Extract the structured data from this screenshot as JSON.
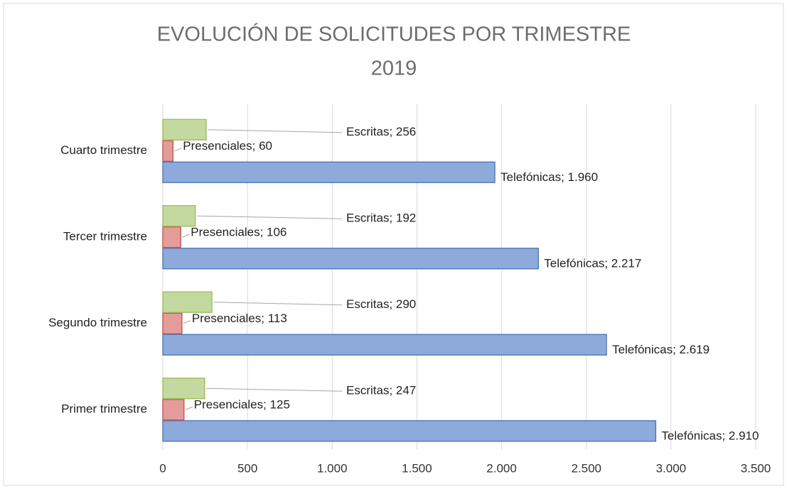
{
  "chart_data": {
    "type": "bar",
    "orientation": "horizontal",
    "title": [
      "EVOLUCIÓN DE SOLICITUDES POR TRIMESTRE",
      "2019"
    ],
    "categories": [
      "Primer trimestre",
      "Segundo trimestre",
      "Tercer trimestre",
      "Cuarto trimestre"
    ],
    "series": [
      {
        "name": "Telefónicas",
        "color": "#8eaadb",
        "stroke": "#4a72b0",
        "values": [
          2910,
          2619,
          2217,
          1960
        ],
        "value_labels": [
          "Telefónicas; 2.910",
          "Telefónicas; 2.619",
          "Telefónicas; 2.217",
          "Telefónicas; 1.960"
        ]
      },
      {
        "name": "Presenciales",
        "color": "#e49c9a",
        "stroke": "#c0504d",
        "values": [
          125,
          113,
          106,
          60
        ],
        "value_labels": [
          "Presenciales; 125",
          "Presenciales; 113",
          "Presenciales; 106",
          "Presenciales; 60"
        ]
      },
      {
        "name": "Escritas",
        "color": "#c3d9a0",
        "stroke": "#9bbb59",
        "values": [
          247,
          290,
          192,
          256
        ],
        "value_labels": [
          "Escritas; 247",
          "Escritas; 290",
          "Escritas; 192",
          "Escritas; 256"
        ]
      }
    ],
    "xlim": [
      0,
      3500
    ],
    "xticks": [
      0,
      500,
      {
        "value": 1000,
        "label": "1.000"
      },
      {
        "value": 1500,
        "label": "1.500"
      },
      {
        "value": 2000,
        "label": "2.000"
      },
      {
        "value": 2500,
        "label": "2.500"
      },
      {
        "value": 3000,
        "label": "3.000"
      },
      {
        "value": 3500,
        "label": "3.500"
      }
    ],
    "grid": true
  }
}
